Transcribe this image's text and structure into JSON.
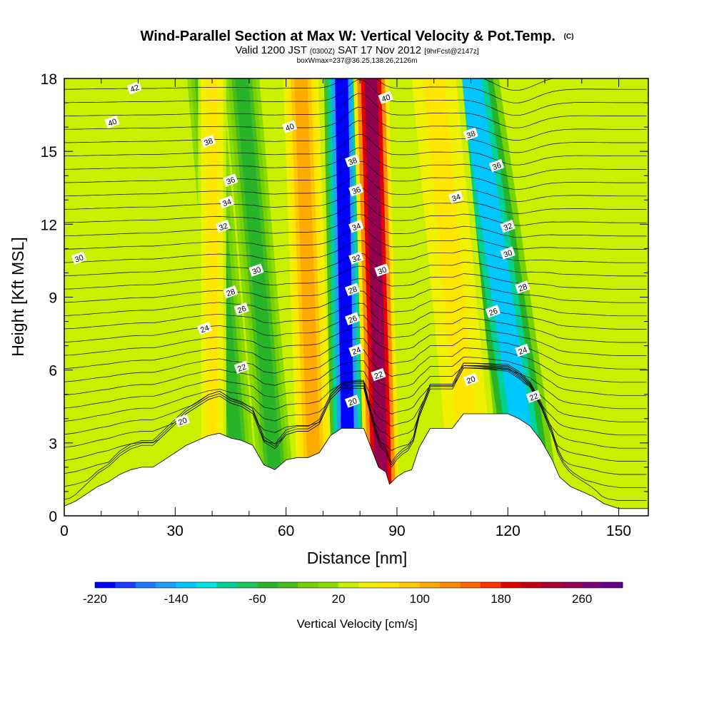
{
  "chart_data": {
    "type": "heatmap",
    "title": "Wind-Parallel Section at Max W: Vertical Velocity & Pot.Temp.",
    "title_mark": "(C)",
    "subtitle_valid": "Valid 1200 JST",
    "subtitle_utc": "(0300Z)",
    "subtitle_date": "SAT 17 Nov 2012",
    "subtitle_fcst": "[9hrFcst@2147z]",
    "subtitle_box": "boxWmax=237@36.25,138.26,2126m",
    "xlabel": "Distance [nm]",
    "ylabel": "Height [Kft MSL]",
    "xlim": [
      0,
      158
    ],
    "ylim": [
      0,
      18
    ],
    "x_ticks": [
      "0",
      "30",
      "60",
      "90",
      "120",
      "150"
    ],
    "y_ticks": [
      "0",
      "3",
      "6",
      "9",
      "12",
      "15",
      "18"
    ],
    "colorbar": {
      "label": "Vertical Velocity [cm/s]",
      "range": [
        -220,
        300
      ],
      "step": 20,
      "tick_labels": [
        "-220",
        "-140",
        "-60",
        "20",
        "100",
        "180",
        "260"
      ],
      "colors": [
        "#0000ff",
        "#1a3cff",
        "#1e78ff",
        "#1ea0ff",
        "#00c8ff",
        "#00e6e6",
        "#00d296",
        "#1ec85a",
        "#28b428",
        "#46be1e",
        "#78d200",
        "#8cdc00",
        "#c8f000",
        "#f0f000",
        "#ffe600",
        "#ffc800",
        "#ffaa00",
        "#ff8c00",
        "#ff6400",
        "#ff3200",
        "#e60000",
        "#c80014",
        "#aa0032",
        "#960050",
        "#780078",
        "#64008c"
      ]
    },
    "vertical_velocity_cm_s": {
      "background": 20,
      "bands": [
        {
          "x_bottom": 77,
          "x_top": 75,
          "width": 5,
          "w": -220
        },
        {
          "x_bottom": 86,
          "x_top": 83,
          "width": 5,
          "w": 240
        },
        {
          "x_bottom": 68,
          "x_top": 64,
          "width": 5,
          "w": 100
        },
        {
          "x_bottom": 58,
          "x_top": 48,
          "width": 5,
          "w": -60
        },
        {
          "x_bottom": 48,
          "x_top": 38,
          "width": 5,
          "w": -60
        },
        {
          "x_bottom": 127,
          "x_top": 110,
          "width": 8,
          "w": -140
        },
        {
          "x_bottom": 111,
          "x_top": 100,
          "width": 8,
          "w": 60
        },
        {
          "x_bottom": 40,
          "x_top": 40,
          "width": 4,
          "w": 60
        }
      ]
    },
    "potential_temperature_labels": [
      {
        "text": "20",
        "x": 32,
        "y": 3.9
      },
      {
        "text": "22",
        "x": 48,
        "y": 6.1
      },
      {
        "text": "24",
        "x": 38,
        "y": 7.7
      },
      {
        "text": "26",
        "x": 48,
        "y": 8.5
      },
      {
        "text": "28",
        "x": 45,
        "y": 9.2
      },
      {
        "text": "30",
        "x": 52,
        "y": 10.1
      },
      {
        "text": "30",
        "x": 4,
        "y": 10.6
      },
      {
        "text": "32",
        "x": 43,
        "y": 11.9
      },
      {
        "text": "34",
        "x": 44,
        "y": 12.9
      },
      {
        "text": "36",
        "x": 45,
        "y": 13.8
      },
      {
        "text": "38",
        "x": 39,
        "y": 15.4
      },
      {
        "text": "40",
        "x": 13,
        "y": 16.2
      },
      {
        "text": "40",
        "x": 61,
        "y": 16.0
      },
      {
        "text": "42",
        "x": 19,
        "y": 17.6
      },
      {
        "text": "20",
        "x": 78,
        "y": 4.7
      },
      {
        "text": "22",
        "x": 85,
        "y": 5.8
      },
      {
        "text": "24",
        "x": 79,
        "y": 6.8
      },
      {
        "text": "26",
        "x": 78,
        "y": 8.1
      },
      {
        "text": "28",
        "x": 78,
        "y": 9.3
      },
      {
        "text": "30",
        "x": 86,
        "y": 10.1
      },
      {
        "text": "32",
        "x": 79,
        "y": 10.6
      },
      {
        "text": "34",
        "x": 79,
        "y": 11.9
      },
      {
        "text": "36",
        "x": 79,
        "y": 13.4
      },
      {
        "text": "38",
        "x": 78,
        "y": 14.6
      },
      {
        "text": "40",
        "x": 87,
        "y": 17.2
      },
      {
        "text": "34",
        "x": 106,
        "y": 13.1
      },
      {
        "text": "36",
        "x": 117,
        "y": 14.4
      },
      {
        "text": "38",
        "x": 110,
        "y": 15.7
      },
      {
        "text": "32",
        "x": 120,
        "y": 11.9
      },
      {
        "text": "30",
        "x": 120,
        "y": 10.8
      },
      {
        "text": "28",
        "x": 124,
        "y": 9.4
      },
      {
        "text": "26",
        "x": 116,
        "y": 8.4
      },
      {
        "text": "24",
        "x": 124,
        "y": 6.8
      },
      {
        "text": "22",
        "x": 127,
        "y": 4.9
      },
      {
        "text": "20",
        "x": 110,
        "y": 5.6
      }
    ],
    "terrain_kft": [
      [
        0,
        0.4
      ],
      [
        3,
        0.6
      ],
      [
        6,
        0.9
      ],
      [
        9,
        1.2
      ],
      [
        12,
        1.4
      ],
      [
        15,
        1.7
      ],
      [
        18,
        1.9
      ],
      [
        21,
        2.0
      ],
      [
        24,
        2.0
      ],
      [
        27,
        2.3
      ],
      [
        30,
        2.6
      ],
      [
        33,
        2.9
      ],
      [
        36,
        3.1
      ],
      [
        39,
        3.3
      ],
      [
        42,
        3.4
      ],
      [
        45,
        3.2
      ],
      [
        48,
        3.1
      ],
      [
        51,
        2.9
      ],
      [
        54,
        2.1
      ],
      [
        57,
        1.9
      ],
      [
        60,
        2.3
      ],
      [
        63,
        2.4
      ],
      [
        66,
        2.4
      ],
      [
        69,
        2.6
      ],
      [
        72,
        3.3
      ],
      [
        75,
        3.6
      ],
      [
        78,
        3.6
      ],
      [
        81,
        3.6
      ],
      [
        83,
        2.8
      ],
      [
        85,
        2.0
      ],
      [
        87,
        1.8
      ],
      [
        88,
        1.3
      ],
      [
        90,
        1.6
      ],
      [
        92,
        1.8
      ],
      [
        94,
        1.9
      ],
      [
        96,
        2.8
      ],
      [
        99,
        3.6
      ],
      [
        102,
        3.6
      ],
      [
        105,
        3.6
      ],
      [
        108,
        4.2
      ],
      [
        111,
        4.2
      ],
      [
        114,
        4.2
      ],
      [
        117,
        4.2
      ],
      [
        120,
        4.2
      ],
      [
        123,
        4.0
      ],
      [
        126,
        3.7
      ],
      [
        129,
        3.1
      ],
      [
        132,
        2.3
      ],
      [
        134,
        1.6
      ],
      [
        137,
        1.2
      ],
      [
        140,
        1.0
      ],
      [
        143,
        0.8
      ],
      [
        146,
        0.5
      ],
      [
        150,
        0.3
      ],
      [
        154,
        0.3
      ],
      [
        158,
        0.3
      ]
    ]
  }
}
